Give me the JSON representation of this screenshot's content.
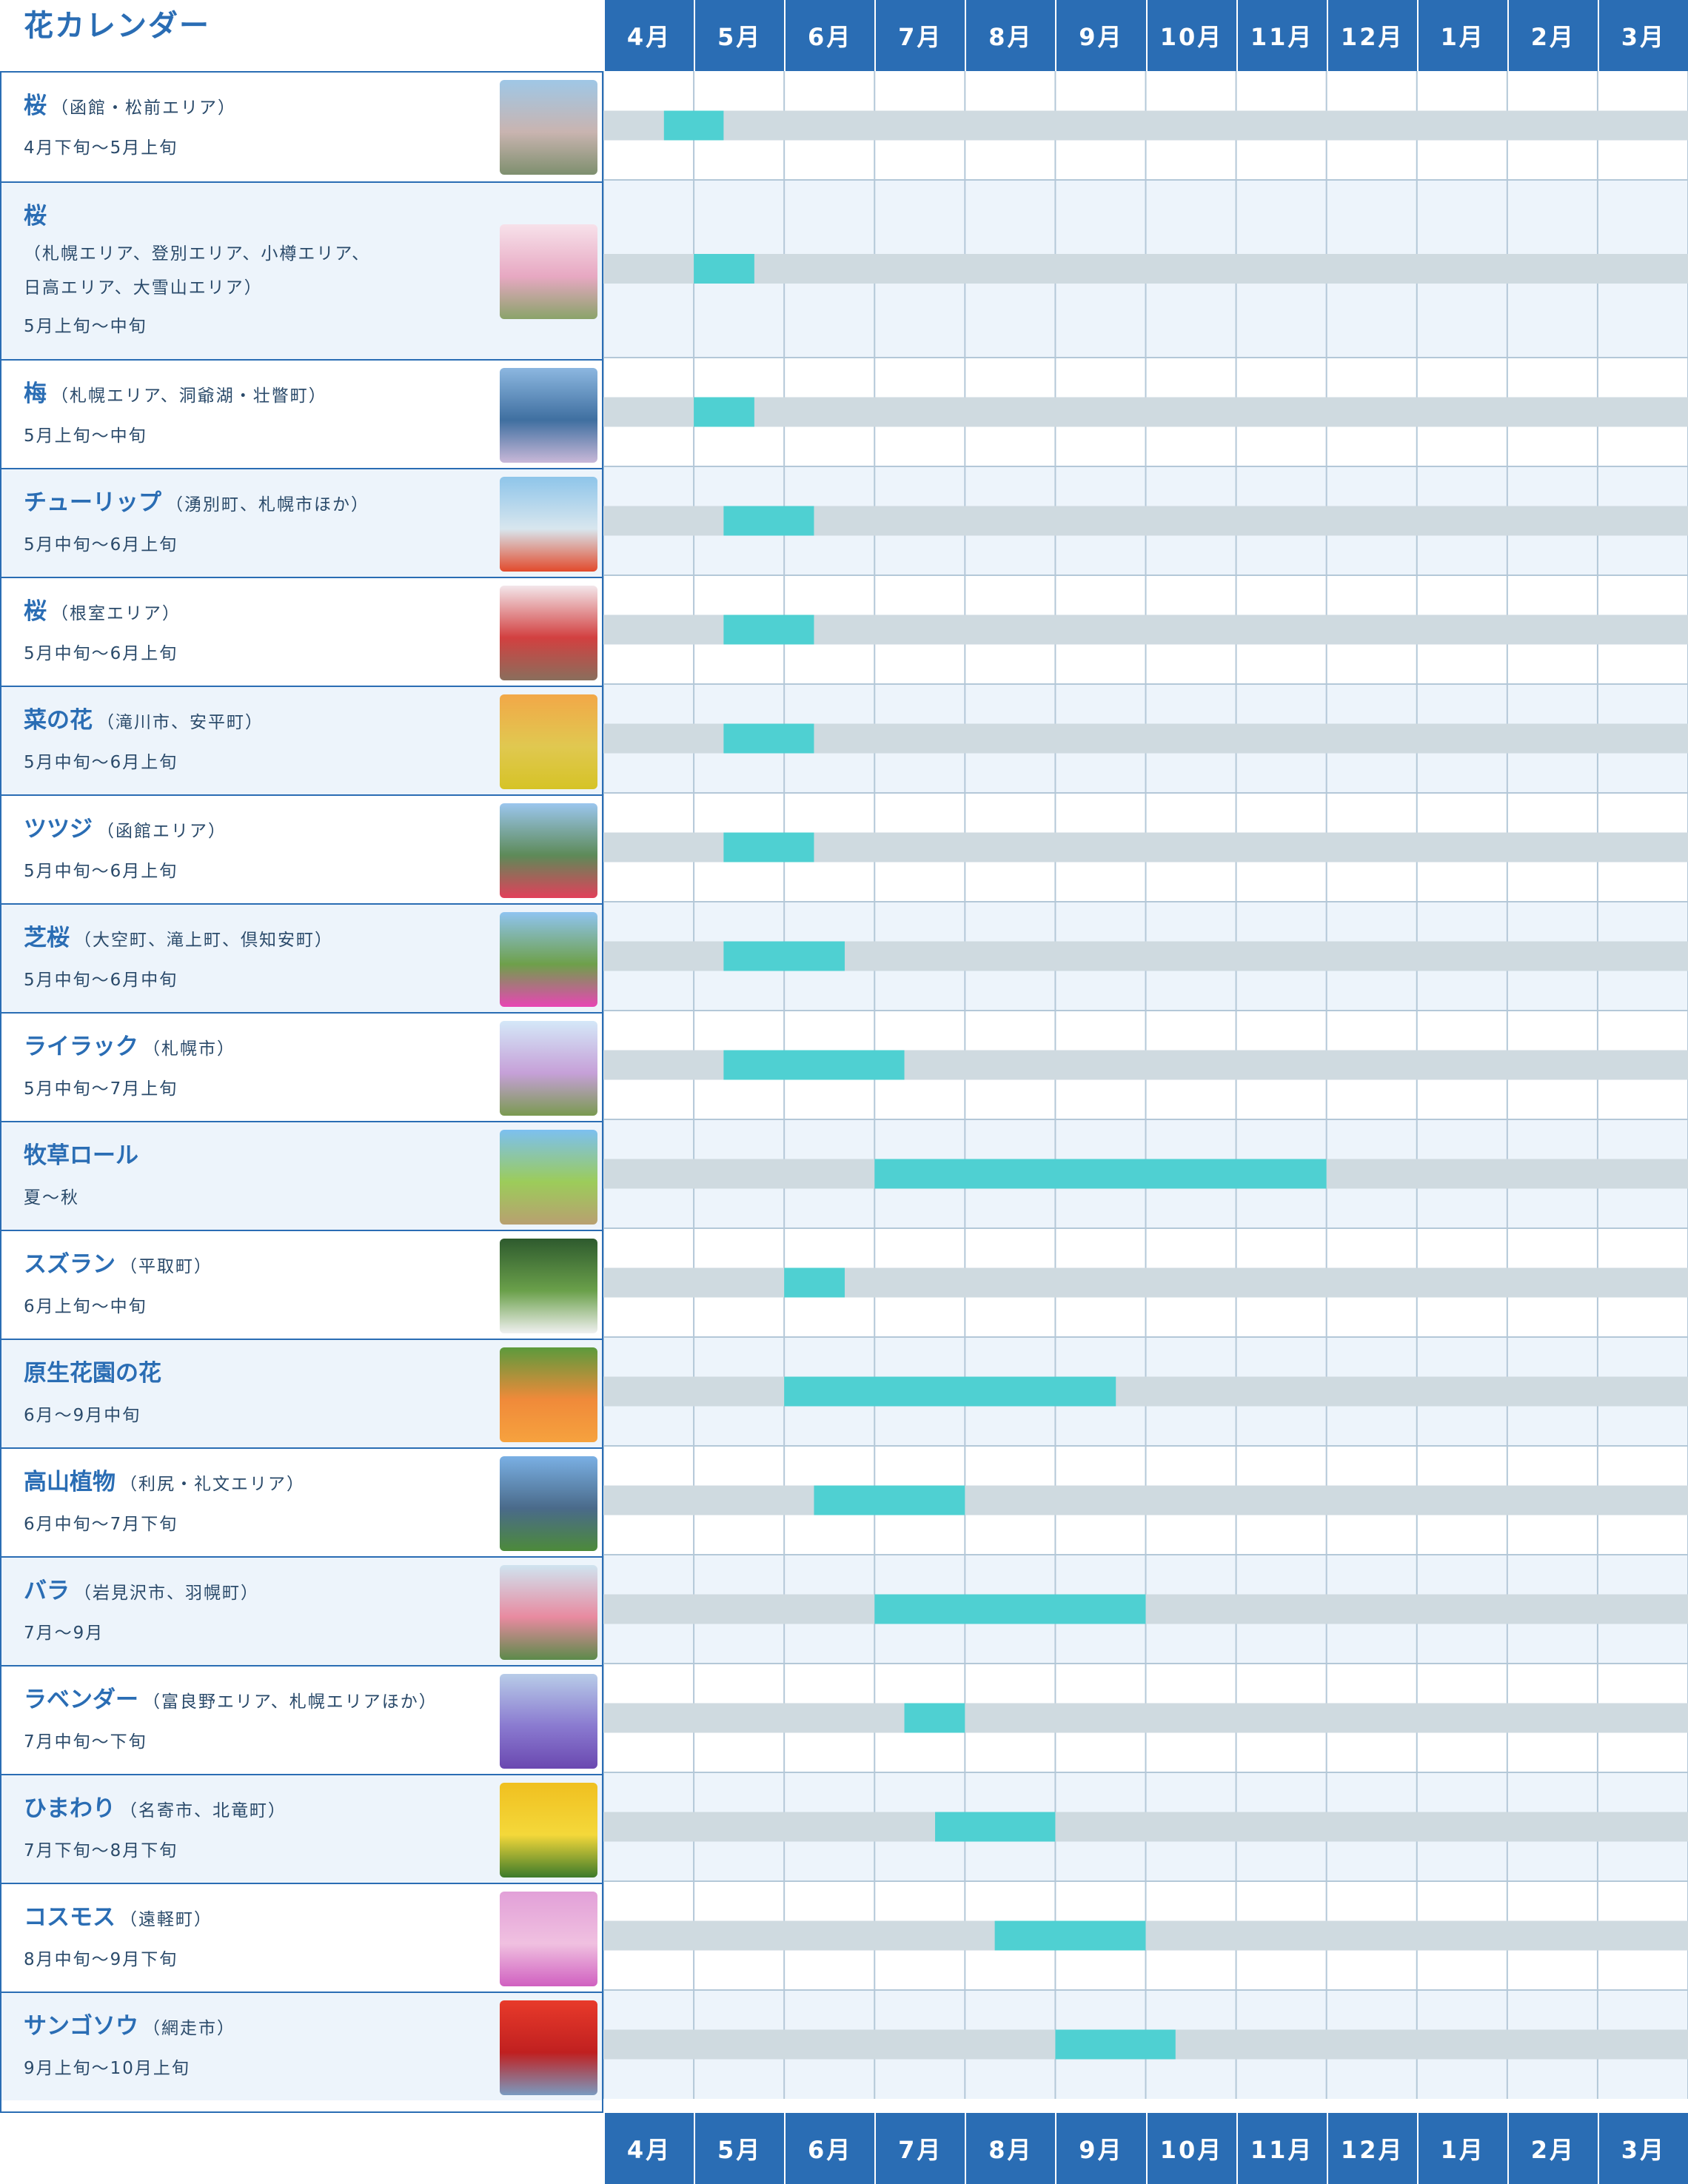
{
  "title": "花カレンダー",
  "months": [
    "4月",
    "5月",
    "6月",
    "7月",
    "8月",
    "9月",
    "10月",
    "11月",
    "12月",
    "1月",
    "2月",
    "3月"
  ],
  "colors": {
    "header_bg": "#2a6db4",
    "row_alt": "#edf4fb",
    "track": "#cfdae0",
    "bloom": "#4fd0d2",
    "grid_line": "#b4c8d8",
    "title": "#2a6db4"
  },
  "rows": [
    {
      "name": "桜",
      "area": "（函館・松前エリア）",
      "period": "4月下旬〜5月上旬",
      "photo": "goryokaku-cherry-photo"
    },
    {
      "name": "桜",
      "area": "（札幌エリア、登別エリア、小樽エリア、日高エリア、大雪山エリア）",
      "area_lines": [
        "（札幌エリア、登別エリア、小樽エリア、",
        "日高エリア、大雪山エリア）"
      ],
      "period": "5月上旬〜中旬",
      "photo": "cherry-tree-avenue-photo"
    },
    {
      "name": "梅",
      "area": "（札幌エリア、洞爺湖・壮瞥町）",
      "period": "5月上旬〜中旬",
      "photo": "plum-lake-toya-photo"
    },
    {
      "name": "チューリップ",
      "area": "（湧別町、札幌市ほか）",
      "period": "5月中旬〜6月上旬",
      "photo": "tulip-windmill-photo"
    },
    {
      "name": "桜",
      "area": "（根室エリア）",
      "period": "5月中旬〜6月上旬",
      "photo": "nemuro-cherry-photo"
    },
    {
      "name": "菜の花",
      "area": "（滝川市、安平町）",
      "period": "5月中旬〜6月上旬",
      "photo": "rapeseed-sunset-photo"
    },
    {
      "name": "ツツジ",
      "area": "（函館エリア）",
      "period": "5月中旬〜6月上旬",
      "photo": "azalea-mountain-photo"
    },
    {
      "name": "芝桜",
      "area": "（大空町、滝上町、倶知安町）",
      "period": "5月中旬〜6月中旬",
      "photo": "moss-phlox-photo"
    },
    {
      "name": "ライラック",
      "area": "（札幌市）",
      "period": "5月中旬〜7月上旬",
      "photo": "lilac-tv-tower-photo"
    },
    {
      "name": "牧草ロール",
      "area": "",
      "period": "夏〜秋",
      "photo": "hay-bale-photo"
    },
    {
      "name": "スズラン",
      "area": "（平取町）",
      "period": "6月上旬〜中旬",
      "photo": "lily-of-valley-photo"
    },
    {
      "name": "原生花園の花",
      "area": "",
      "period": "6月〜9月中旬",
      "photo": "wild-lily-photo"
    },
    {
      "name": "高山植物",
      "area": "（利尻・礼文エリア）",
      "period": "6月中旬〜7月下旬",
      "photo": "alpine-rishiri-photo"
    },
    {
      "name": "バラ",
      "area": "（岩見沢市、羽幌町）",
      "period": "7月〜9月",
      "photo": "rose-garden-photo"
    },
    {
      "name": "ラベンダー",
      "area": "（富良野エリア、札幌エリアほか）",
      "period": "7月中旬〜下旬",
      "photo": "lavender-field-photo"
    },
    {
      "name": "ひまわり",
      "area": "（名寄市、北竜町）",
      "period": "7月下旬〜8月下旬",
      "photo": "sunflower-photo"
    },
    {
      "name": "コスモス",
      "area": "（遠軽町）",
      "period": "8月中旬〜9月下旬",
      "photo": "cosmos-photo"
    },
    {
      "name": "サンゴソウ",
      "area": "（網走市）",
      "period": "9月上旬〜10月上旬",
      "photo": "glasswort-red-photo"
    }
  ],
  "chart_data": {
    "type": "bar",
    "orientation": "horizontal-gantt",
    "categories": [
      "桜（函館・松前エリア）",
      "桜（札幌エリア、登別エリア、小樽エリア、日高エリア、大雪山エリア）",
      "梅（札幌エリア、洞爺湖・壮瞥町）",
      "チューリップ（湧別町、札幌市ほか）",
      "桜（根室エリア）",
      "菜の花（滝川市、安平町）",
      "ツツジ（函館エリア）",
      "芝桜（大空町、滝上町、倶知安町）",
      "ライラック（札幌市）",
      "牧草ロール",
      "スズラン（平取町）",
      "原生花園の花",
      "高山植物（利尻・礼文エリア）",
      "バラ（岩見沢市、羽幌町）",
      "ラベンダー（富良野エリア、札幌エリアほか）",
      "ひまわり（名寄市、北竜町）",
      "コスモス（遠軽町）",
      "サンゴソウ（網走市）"
    ],
    "x_categories": [
      "4月",
      "5月",
      "6月",
      "7月",
      "8月",
      "9月",
      "10月",
      "11月",
      "12月",
      "1月",
      "2月",
      "3月"
    ],
    "x_unit": "months from start of April",
    "xlim": [
      0,
      12
    ],
    "ranges": [
      [
        0.67,
        1.33
      ],
      [
        1.0,
        1.67
      ],
      [
        1.0,
        1.67
      ],
      [
        1.33,
        2.33
      ],
      [
        1.33,
        2.33
      ],
      [
        1.33,
        2.33
      ],
      [
        1.33,
        2.33
      ],
      [
        1.33,
        2.67
      ],
      [
        1.33,
        3.33
      ],
      [
        3.0,
        8.0
      ],
      [
        2.0,
        2.67
      ],
      [
        2.0,
        5.67
      ],
      [
        2.33,
        4.0
      ],
      [
        3.0,
        6.0
      ],
      [
        3.33,
        4.0
      ],
      [
        3.67,
        5.0
      ],
      [
        4.33,
        6.0
      ],
      [
        5.0,
        6.33
      ]
    ],
    "grid": true
  }
}
